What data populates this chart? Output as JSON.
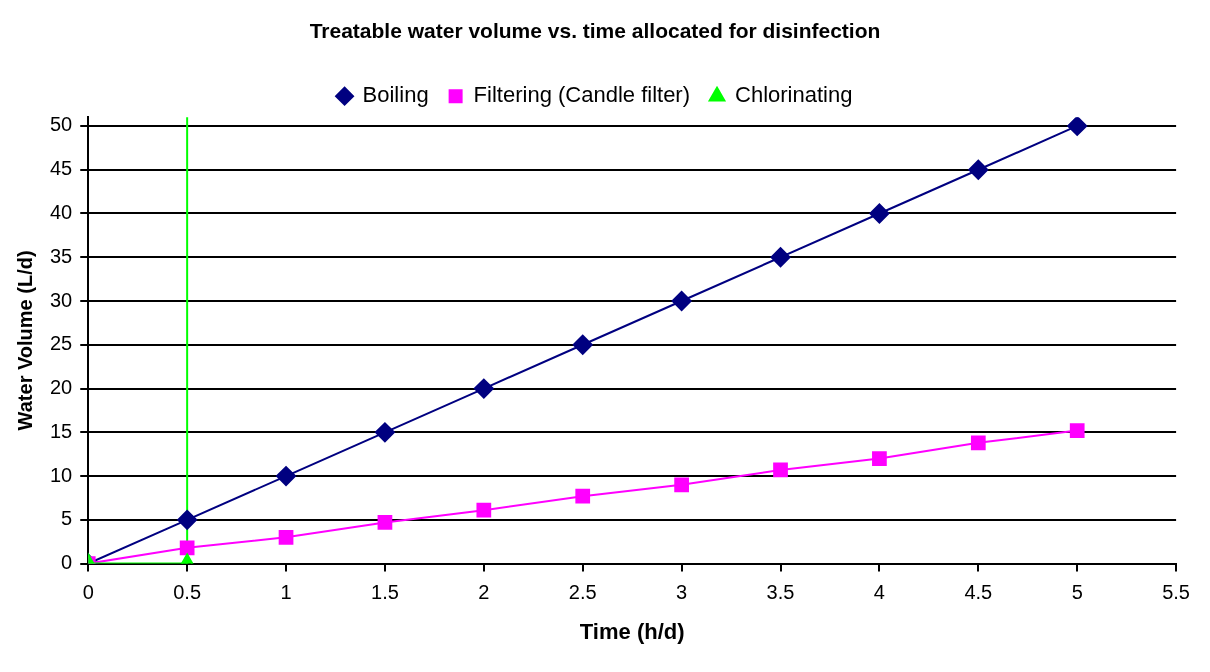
{
  "chart_data": {
    "type": "line",
    "title": "Treatable water volume vs. time allocated for disinfection",
    "xlabel": "Time (h/d)",
    "ylabel": "Water Volume (L/d)",
    "x": [
      0,
      0.5,
      1,
      1.5,
      2,
      2.5,
      3,
      3.5,
      4,
      4.5,
      5
    ],
    "series": [
      {
        "name": "Boiling",
        "color": "#000080",
        "marker": "diamond",
        "values": [
          0,
          5,
          10,
          15,
          20,
          25,
          30,
          35,
          40,
          45,
          50
        ]
      },
      {
        "name": "Filtering (Candle filter)",
        "color": "#ff00ff",
        "marker": "square",
        "values": [
          0,
          1.8,
          3,
          4.7,
          6.1,
          7.7,
          9,
          10.7,
          12,
          13.8,
          15.2
        ]
      },
      {
        "name": "Chlorinating",
        "color": "#00ff00",
        "marker": "triangle",
        "values": [
          0,
          0,
          null,
          null,
          null,
          null,
          null,
          null,
          null,
          null,
          null
        ]
      }
    ],
    "ref_lines": [
      {
        "axis": "x",
        "value": 0.5,
        "color": "#00ff00"
      }
    ],
    "xlim": [
      0,
      5.5
    ],
    "xticks": [
      0,
      0.5,
      1,
      1.5,
      2,
      2.5,
      3,
      3.5,
      4,
      4.5,
      5,
      5.5
    ],
    "ylim": [
      0,
      51
    ],
    "yticks": [
      0,
      5,
      10,
      15,
      20,
      25,
      30,
      35,
      40,
      45,
      50
    ],
    "grid": "y",
    "legend": "top"
  }
}
